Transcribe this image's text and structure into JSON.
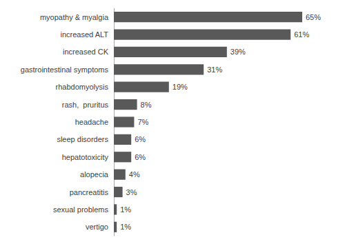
{
  "chart_data": {
    "type": "bar",
    "orientation": "horizontal",
    "categories": [
      "vertigo",
      "sexual problems",
      "pancreatitis",
      "alopecia",
      "hepatotoxicity",
      "sleep disorders",
      "headache",
      "rash,  pruritus",
      "rhabdomyolysis",
      "gastrointestinal symptoms",
      "increased CK",
      "increased ALT",
      "myopathy & myalgia"
    ],
    "values": [
      1,
      1,
      3,
      4,
      6,
      6,
      7,
      8,
      19,
      31,
      39,
      61,
      65
    ],
    "value_labels": [
      "1%",
      "1%",
      "3%",
      "4%",
      "6%",
      "6%",
      "7%",
      "8%",
      "19%",
      "31%",
      "39%",
      "61%",
      "65%"
    ],
    "data_labels": true,
    "color": "#595959",
    "xlim": [
      0,
      75
    ],
    "grid": false,
    "tick_labels": "y"
  }
}
